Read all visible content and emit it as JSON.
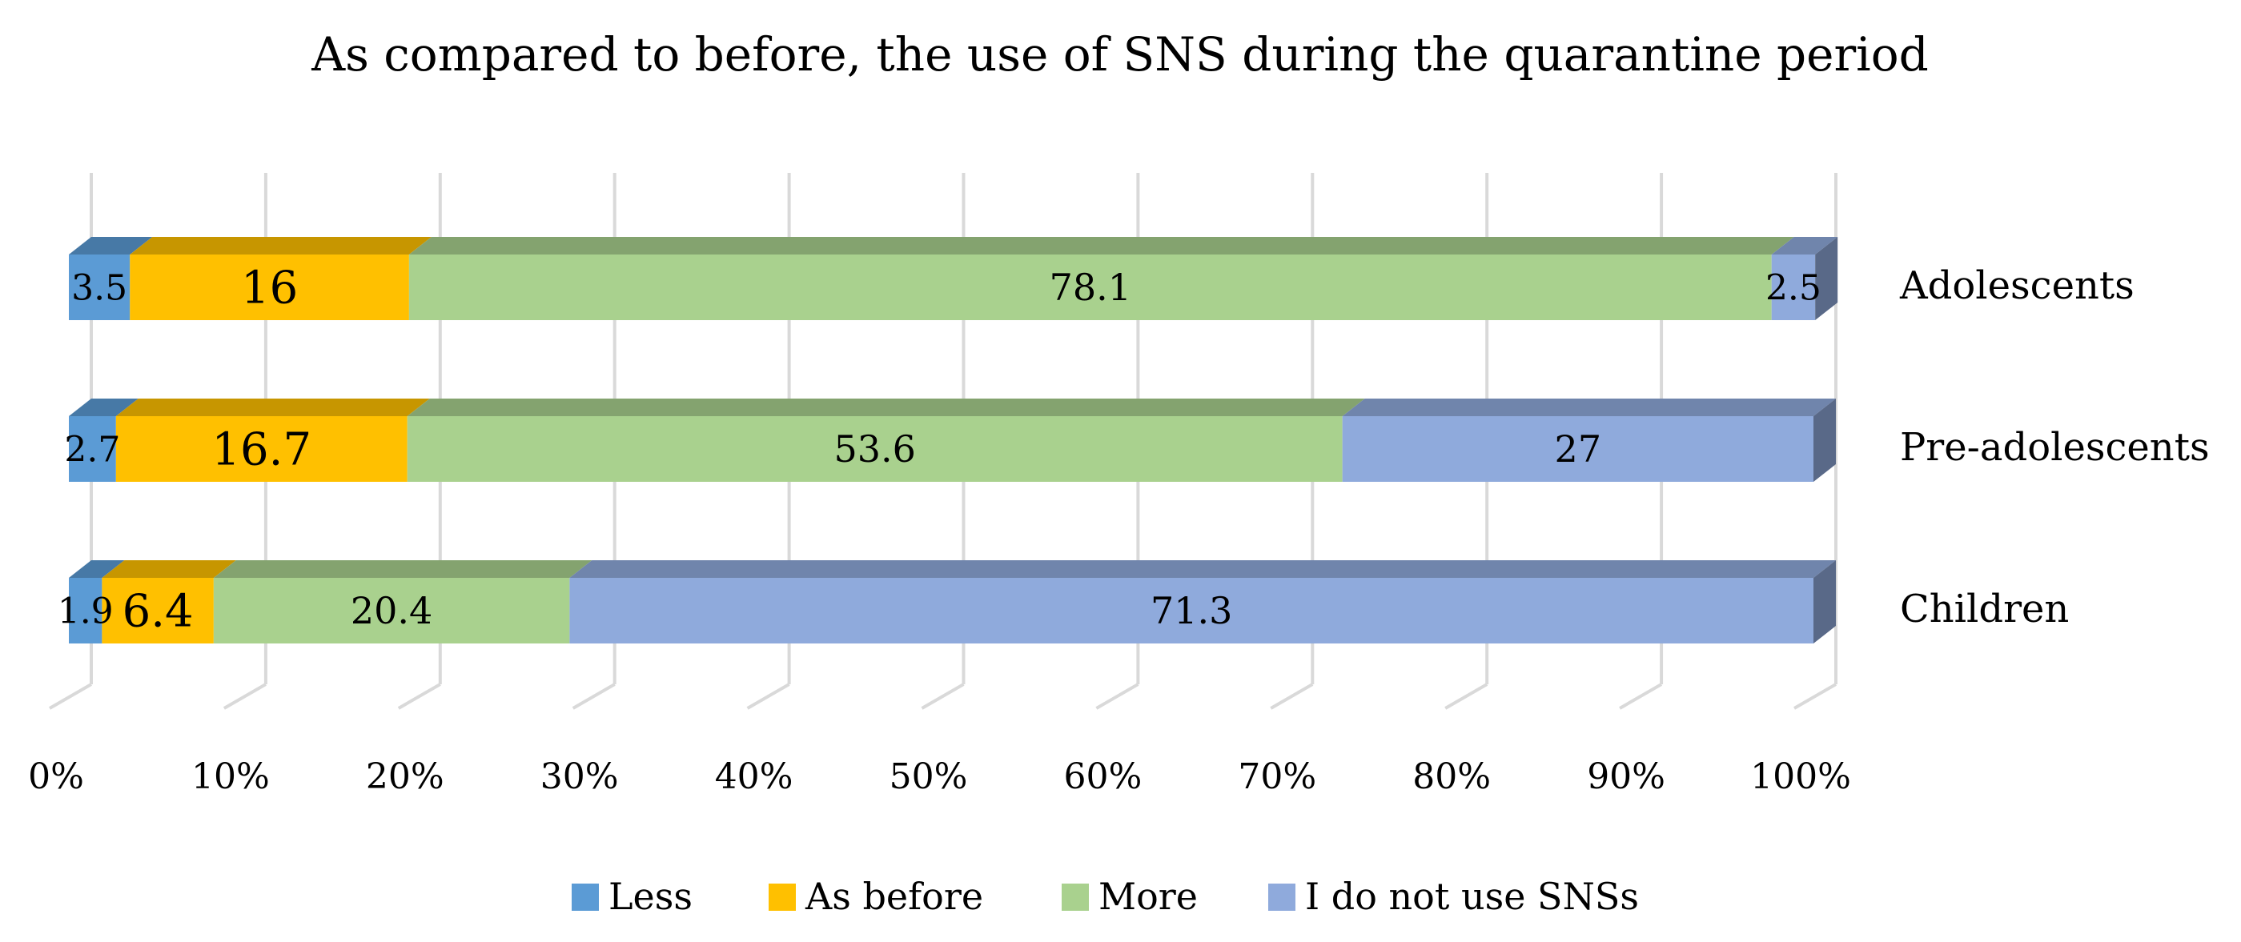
{
  "chart_data": {
    "type": "bar",
    "orientation": "horizontal",
    "stacked": "percent",
    "style": "3d",
    "title": "As compared to before, the use of SNS during the quarantine period",
    "xlabel": "",
    "ylabel": "",
    "xlim": [
      0,
      100
    ],
    "x_tick_labels": [
      "0%",
      "10%",
      "20%",
      "30%",
      "40%",
      "50%",
      "60%",
      "70%",
      "80%",
      "90%",
      "100%"
    ],
    "categories": [
      "Adolescents",
      "Pre-adolescents",
      "Children"
    ],
    "series": [
      {
        "name": "Less",
        "color": "#5B9BD5",
        "values": [
          3.5,
          2.7,
          1.9
        ],
        "labels": [
          "3.5",
          "2.7",
          "1.9"
        ]
      },
      {
        "name": "As before",
        "color": "#FFC000",
        "values": [
          16,
          16.7,
          6.4
        ],
        "labels": [
          "16",
          "16.7",
          "6.4"
        ]
      },
      {
        "name": "More",
        "color": "#A9D18E",
        "values": [
          78.1,
          53.6,
          20.4
        ],
        "labels": [
          "78.1",
          "53.6",
          "20.4"
        ]
      },
      {
        "name": "I do not use SNSs",
        "color": "#8FAADC",
        "values": [
          2.5,
          27,
          71.3
        ],
        "labels": [
          "2.5",
          "27",
          "71.3"
        ]
      }
    ],
    "grid": true,
    "legend_position": "bottom"
  }
}
